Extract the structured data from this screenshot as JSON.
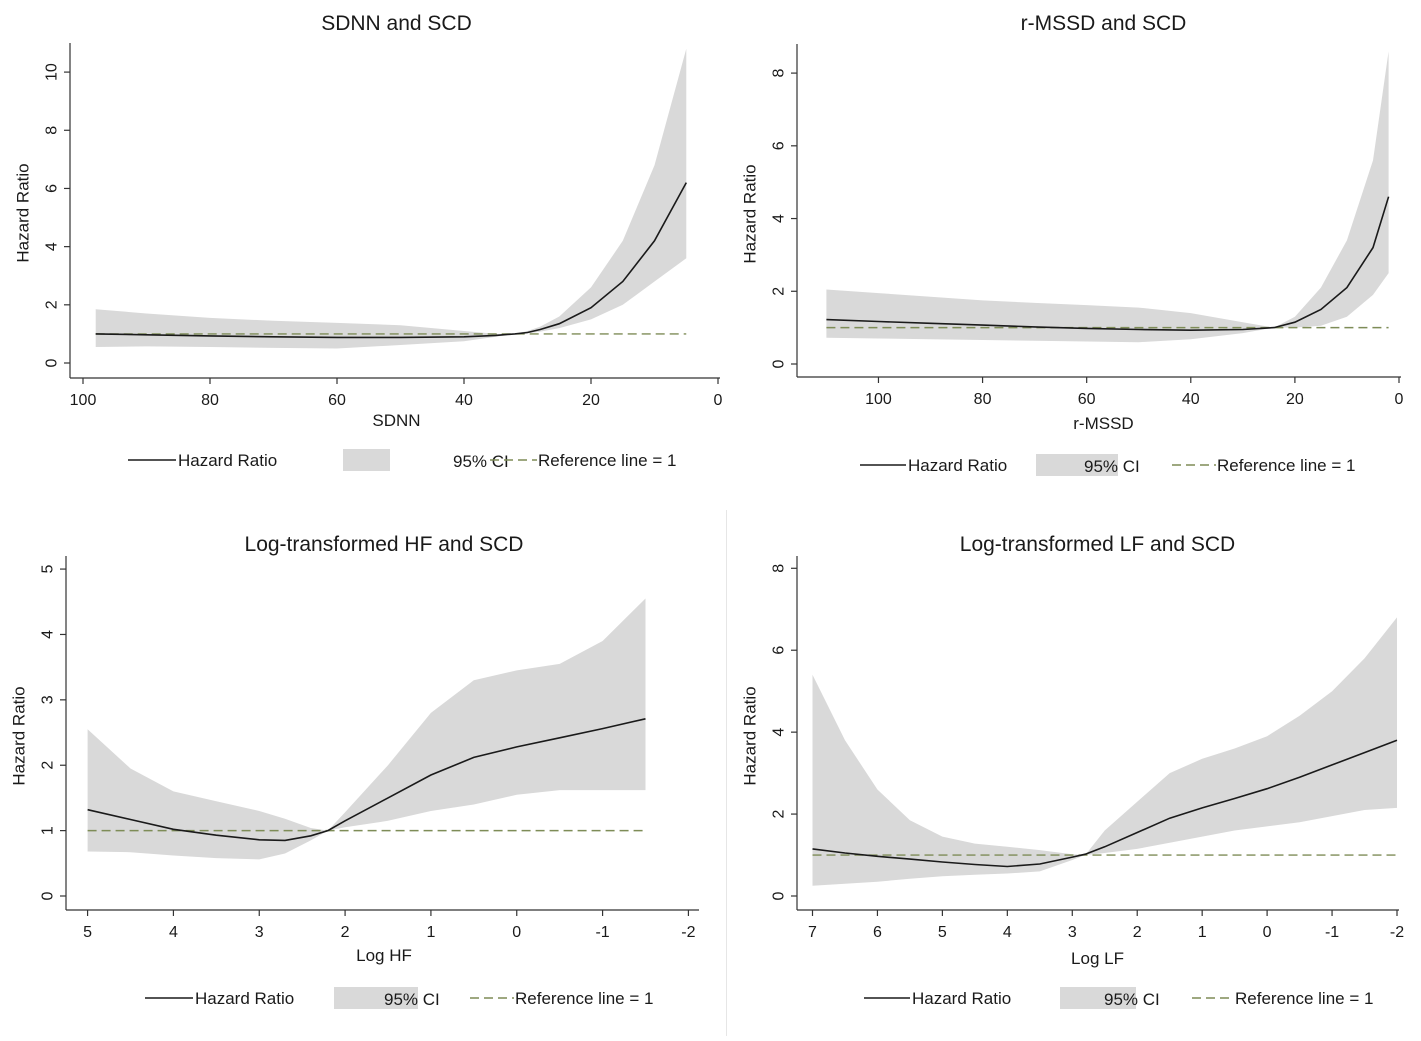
{
  "chart_data": [
    {
      "type": "line",
      "title": "SDNN and SCD",
      "xlabel": "SDNN",
      "ylabel": "Hazard Ratio",
      "x_reversed": true,
      "xlim": [
        100,
        0
      ],
      "ylim": [
        0,
        11
      ],
      "xticks": [
        100,
        80,
        60,
        40,
        20,
        0
      ],
      "yticks": [
        0,
        2,
        4,
        6,
        8,
        10
      ],
      "reference_value": 1,
      "legend": {
        "position": "bottom",
        "items": [
          "Hazard Ratio",
          "95% CI",
          "Reference line = 1"
        ]
      },
      "series": [
        {
          "name": "Hazard Ratio",
          "x": [
            98,
            90,
            80,
            70,
            60,
            50,
            40,
            35,
            32,
            30,
            28,
            25,
            20,
            15,
            10,
            5
          ],
          "y": [
            1.0,
            0.97,
            0.93,
            0.9,
            0.88,
            0.88,
            0.9,
            0.95,
            1.0,
            1.05,
            1.15,
            1.35,
            1.9,
            2.8,
            4.2,
            6.2
          ]
        },
        {
          "name": "95% CI",
          "type": "band",
          "x": [
            98,
            90,
            80,
            70,
            60,
            50,
            40,
            35,
            32,
            30,
            28,
            25,
            20,
            15,
            10,
            5
          ],
          "lower": [
            0.55,
            0.57,
            0.55,
            0.52,
            0.5,
            0.62,
            0.75,
            0.9,
            1.0,
            1.02,
            1.08,
            1.2,
            1.5,
            2.0,
            2.8,
            3.6
          ],
          "upper": [
            1.85,
            1.7,
            1.55,
            1.45,
            1.38,
            1.3,
            1.1,
            1.0,
            1.0,
            1.1,
            1.25,
            1.6,
            2.6,
            4.2,
            6.8,
            10.8
          ]
        }
      ]
    },
    {
      "type": "line",
      "title": "r-MSSD and SCD",
      "xlabel": "r-MSSD",
      "ylabel": "Hazard Ratio",
      "x_reversed": true,
      "xlim": [
        112,
        0
      ],
      "ylim": [
        0,
        8.8
      ],
      "xticks": [
        100,
        80,
        60,
        40,
        20,
        0
      ],
      "yticks": [
        0,
        2,
        4,
        6,
        8
      ],
      "reference_value": 1,
      "legend": {
        "position": "bottom",
        "items": [
          "Hazard Ratio",
          "95% CI",
          "Reference line = 1"
        ]
      },
      "series": [
        {
          "name": "Hazard Ratio",
          "x": [
            110,
            100,
            90,
            80,
            70,
            60,
            50,
            40,
            30,
            24,
            20,
            15,
            10,
            5,
            2
          ],
          "y": [
            1.22,
            1.17,
            1.12,
            1.07,
            1.02,
            0.98,
            0.95,
            0.93,
            0.95,
            1.0,
            1.15,
            1.5,
            2.1,
            3.2,
            4.6
          ]
        },
        {
          "name": "95% CI",
          "type": "band",
          "x": [
            110,
            100,
            90,
            80,
            70,
            60,
            50,
            40,
            30,
            24,
            20,
            15,
            10,
            5,
            2
          ],
          "lower": [
            0.72,
            0.7,
            0.68,
            0.66,
            0.64,
            0.62,
            0.6,
            0.68,
            0.85,
            1.0,
            1.0,
            1.05,
            1.3,
            1.9,
            2.5
          ],
          "upper": [
            2.05,
            1.95,
            1.85,
            1.75,
            1.68,
            1.62,
            1.55,
            1.4,
            1.15,
            1.0,
            1.3,
            2.1,
            3.4,
            5.6,
            8.6
          ]
        }
      ]
    },
    {
      "type": "line",
      "title": "Log-transformed HF and SCD",
      "xlabel": "Log HF",
      "ylabel": "Hazard Ratio",
      "x_reversed": true,
      "xlim": [
        5.1,
        -2.1
      ],
      "ylim": [
        0,
        5.2
      ],
      "xticks": [
        5,
        4,
        3,
        2,
        1,
        0,
        -1,
        -2
      ],
      "yticks": [
        0,
        1,
        2,
        3,
        4,
        5
      ],
      "reference_value": 1,
      "legend": {
        "position": "bottom",
        "items": [
          "Hazard Ratio",
          "95% CI",
          "Reference line = 1"
        ]
      },
      "series": [
        {
          "name": "Hazard Ratio",
          "x": [
            5.0,
            4.5,
            4.0,
            3.5,
            3.0,
            2.7,
            2.4,
            2.2,
            2.0,
            1.5,
            1.0,
            0.5,
            0.0,
            -0.5,
            -1.0,
            -1.5
          ],
          "y": [
            1.32,
            1.17,
            1.02,
            0.93,
            0.86,
            0.85,
            0.92,
            1.0,
            1.15,
            1.5,
            1.85,
            2.12,
            2.28,
            2.42,
            2.56,
            2.71
          ]
        },
        {
          "name": "95% CI",
          "type": "band",
          "x": [
            5.0,
            4.5,
            4.0,
            3.5,
            3.0,
            2.7,
            2.4,
            2.2,
            2.0,
            1.5,
            1.0,
            0.5,
            0.0,
            -0.5,
            -1.0,
            -1.5
          ],
          "lower": [
            0.68,
            0.67,
            0.62,
            0.58,
            0.56,
            0.65,
            0.85,
            1.0,
            1.05,
            1.15,
            1.3,
            1.4,
            1.55,
            1.62,
            1.62,
            1.62
          ],
          "upper": [
            2.55,
            1.95,
            1.6,
            1.45,
            1.3,
            1.18,
            1.04,
            1.0,
            1.28,
            2.0,
            2.8,
            3.3,
            3.45,
            3.55,
            3.9,
            4.55
          ]
        }
      ]
    },
    {
      "type": "line",
      "title": "Log-transformed LF and SCD",
      "xlabel": "Log LF",
      "ylabel": "Hazard Ratio",
      "x_reversed": true,
      "xlim": [
        7.1,
        -2.0
      ],
      "ylim": [
        0,
        8.3
      ],
      "xticks": [
        7,
        6,
        5,
        4,
        3,
        2,
        1,
        0,
        -1,
        -2
      ],
      "yticks": [
        0,
        2,
        4,
        6,
        8
      ],
      "reference_value": 1,
      "legend": {
        "position": "bottom",
        "items": [
          "Hazard Ratio",
          "95% CI",
          "Reference line = 1"
        ]
      },
      "series": [
        {
          "name": "Hazard Ratio",
          "x": [
            7.0,
            6.5,
            6.0,
            5.5,
            5.0,
            4.5,
            4.0,
            3.5,
            3.0,
            2.8,
            2.5,
            2.0,
            1.5,
            1.0,
            0.5,
            0.0,
            -0.5,
            -1.0,
            -1.5,
            -2.0
          ],
          "y": [
            1.15,
            1.05,
            0.97,
            0.9,
            0.83,
            0.77,
            0.72,
            0.78,
            0.95,
            1.02,
            1.2,
            1.55,
            1.9,
            2.15,
            2.38,
            2.62,
            2.9,
            3.2,
            3.5,
            3.8
          ]
        },
        {
          "name": "95% CI",
          "type": "band",
          "x": [
            7.0,
            6.5,
            6.0,
            5.5,
            5.0,
            4.5,
            4.0,
            3.5,
            3.0,
            2.8,
            2.5,
            2.0,
            1.5,
            1.0,
            0.5,
            0.0,
            -0.5,
            -1.0,
            -1.5,
            -2.0
          ],
          "lower": [
            0.25,
            0.3,
            0.35,
            0.42,
            0.48,
            0.52,
            0.55,
            0.6,
            0.88,
            1.0,
            1.05,
            1.15,
            1.3,
            1.45,
            1.6,
            1.7,
            1.8,
            1.95,
            2.1,
            2.15
          ],
          "upper": [
            5.4,
            3.8,
            2.6,
            1.85,
            1.45,
            1.28,
            1.2,
            1.12,
            1.02,
            1.0,
            1.6,
            2.3,
            3.0,
            3.35,
            3.6,
            3.9,
            4.4,
            5.0,
            5.8,
            6.8
          ]
        }
      ]
    }
  ],
  "colors": {
    "curve": "#1a1a1a",
    "band": "#d9d9d9",
    "reference": "#7e8c57",
    "axis": "#333333",
    "text": "#1a1a1a"
  }
}
